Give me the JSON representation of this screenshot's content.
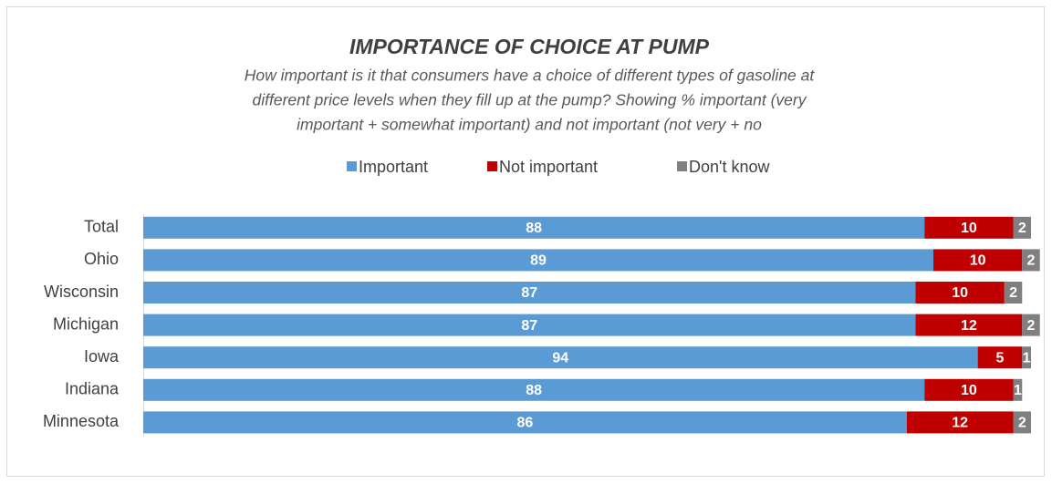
{
  "chart_data": {
    "type": "stacked_barh",
    "title": "IMPORTANCE OF CHOICE AT PUMP",
    "subtitle": [
      "How important is it that consumers have a choice of different types of gasoline at",
      "different price levels when they fill up at the pump? Showing % important (very",
      "important + somewhat important) and not important (not very + no"
    ],
    "categories": [
      "Total",
      "Ohio",
      "Wisconsin",
      "Michigan",
      "Iowa",
      "Indiana",
      "Minnesota"
    ],
    "series": [
      {
        "name": "Important",
        "color": "#5b9bd5",
        "values": [
          88,
          89,
          87,
          87,
          94,
          88,
          86
        ]
      },
      {
        "name": "Not important",
        "color": "#c00000",
        "values": [
          10,
          10,
          10,
          12,
          5,
          10,
          12
        ]
      },
      {
        "name": "Don't know",
        "color": "#7f7f7f",
        "values": [
          2,
          2,
          2,
          2,
          1,
          1,
          2
        ]
      }
    ],
    "xlim": [
      0,
      100
    ],
    "legend": "top"
  }
}
